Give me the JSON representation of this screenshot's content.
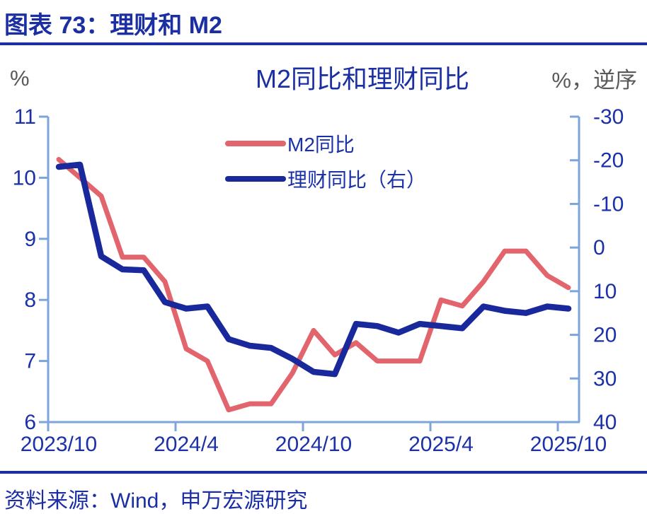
{
  "header": {
    "title": "图表 73：理财和 M2"
  },
  "footer": {
    "source": "资料来源：Wind，申万宏源研究"
  },
  "chart_data": {
    "type": "line",
    "title": "M2同比和理财同比",
    "left_axis": {
      "unit": "%",
      "ticks": [
        11,
        10,
        9,
        8,
        7,
        6
      ],
      "range": [
        6,
        11
      ]
    },
    "right_axis": {
      "unit": "%，逆序",
      "ticks": [
        -30,
        -20,
        -10,
        0,
        10,
        20,
        30,
        40
      ],
      "range": [
        -30,
        40
      ],
      "inverted": true
    },
    "x_axis": {
      "tick_labels": [
        "2023/10",
        "2024/4",
        "2024/10",
        "2025/4",
        "2025/10"
      ]
    },
    "categories": [
      "2023/10",
      "2023/11",
      "2023/12",
      "2024/1",
      "2024/2",
      "2024/3",
      "2024/4",
      "2024/5",
      "2024/6",
      "2024/7",
      "2024/8",
      "2024/9",
      "2024/10",
      "2024/11",
      "2024/12",
      "2025/1",
      "2025/2",
      "2025/3",
      "2025/4",
      "2025/5",
      "2025/6",
      "2025/7",
      "2025/8",
      "2025/9",
      "2025/10"
    ],
    "series": [
      {
        "name": "M2同比",
        "axis": "left",
        "color": "#E2646C",
        "values": [
          10.3,
          10.0,
          9.7,
          8.7,
          8.7,
          8.3,
          7.2,
          7.0,
          6.2,
          6.3,
          6.3,
          6.8,
          7.5,
          7.1,
          7.3,
          7.0,
          7.0,
          7.0,
          8.0,
          7.9,
          8.3,
          8.8,
          8.8,
          8.4,
          8.2
        ]
      },
      {
        "name": "理财同比（右）",
        "axis": "right",
        "color": "#19289B",
        "values": [
          -18.5,
          -19.0,
          2.0,
          5.0,
          5.2,
          12.5,
          14.0,
          13.5,
          21.0,
          22.5,
          23.0,
          25.5,
          28.5,
          29.0,
          17.5,
          18.0,
          19.5,
          17.5,
          18.0,
          18.5,
          13.5,
          14.5,
          15.0,
          13.5,
          14.0
        ]
      }
    ],
    "legend_position": "top-center-inside",
    "grid": false,
    "colors": {
      "navy_text": "#1B2FA3",
      "tick_text": "#1B31A8",
      "unit_text": "#595959",
      "axis": "#7CA5DB",
      "m2_line": "#E2646C",
      "wm_line": "#19289B"
    }
  }
}
